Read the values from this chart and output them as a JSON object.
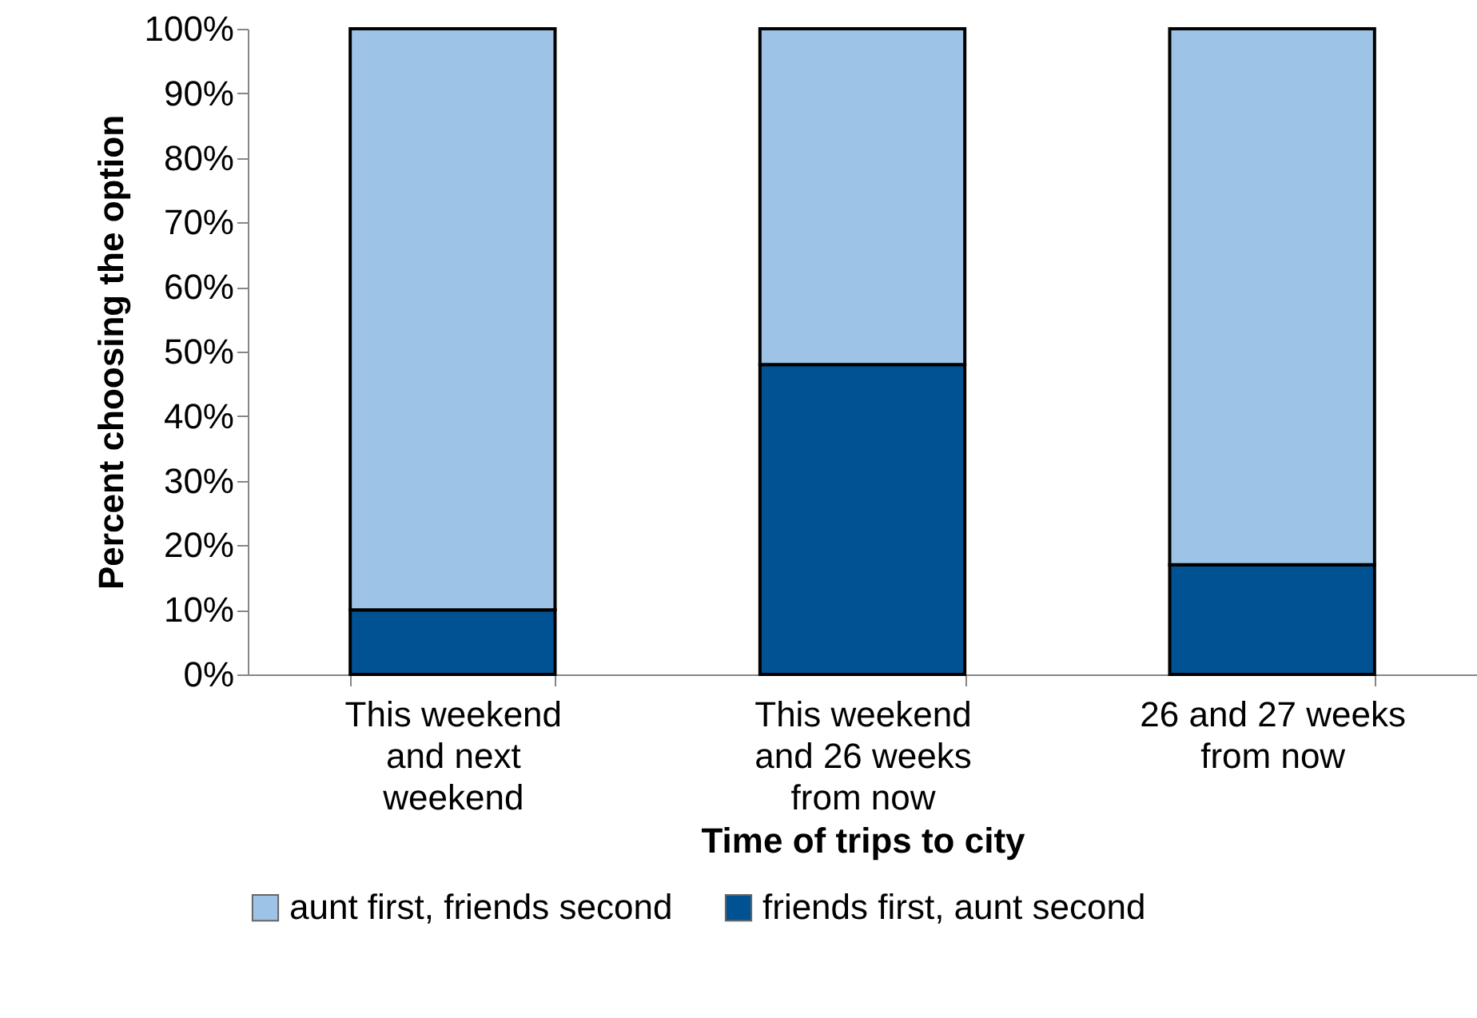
{
  "chart_data": {
    "type": "bar",
    "stacked": true,
    "xlabel": "Time of trips to city",
    "ylabel": "Percent choosing the option",
    "categories": [
      "This weekend and next weekend",
      "This weekend and 26 weeks from now",
      "26 and 27 weeks from now"
    ],
    "series": [
      {
        "name": "friends first, aunt second",
        "color": "#005293",
        "values": [
          10,
          48,
          17
        ]
      },
      {
        "name": "aunt first, friends second",
        "color": "#9dc3e6",
        "values": [
          90,
          52,
          83
        ]
      }
    ],
    "ylim": [
      0,
      100
    ],
    "yticks": [
      {
        "value": 0,
        "label": "0%"
      },
      {
        "value": 10,
        "label": "10%"
      },
      {
        "value": 20,
        "label": "20%"
      },
      {
        "value": 30,
        "label": "30%"
      },
      {
        "value": 40,
        "label": "40%"
      },
      {
        "value": 50,
        "label": "50%"
      },
      {
        "value": 60,
        "label": "60%"
      },
      {
        "value": 70,
        "label": "70%"
      },
      {
        "value": 80,
        "label": "80%"
      },
      {
        "value": 90,
        "label": "90%"
      },
      {
        "value": 100,
        "label": "100%"
      }
    ],
    "legend": "bottom"
  }
}
